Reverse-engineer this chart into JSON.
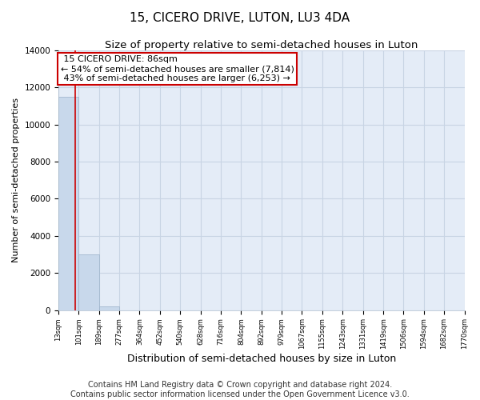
{
  "title": "15, CICERO DRIVE, LUTON, LU3 4DA",
  "subtitle": "Size of property relative to semi-detached houses in Luton",
  "xlabel": "Distribution of semi-detached houses by size in Luton",
  "ylabel": "Number of semi-detached properties",
  "bin_edges": [
    13,
    101,
    189,
    277,
    364,
    452,
    540,
    628,
    716,
    804,
    892,
    979,
    1067,
    1155,
    1243,
    1331,
    1419,
    1506,
    1594,
    1682,
    1770
  ],
  "bin_labels": [
    "13sqm",
    "101sqm",
    "189sqm",
    "277sqm",
    "364sqm",
    "452sqm",
    "540sqm",
    "628sqm",
    "716sqm",
    "804sqm",
    "892sqm",
    "979sqm",
    "1067sqm",
    "1155sqm",
    "1243sqm",
    "1331sqm",
    "1419sqm",
    "1506sqm",
    "1594sqm",
    "1682sqm",
    "1770sqm"
  ],
  "bar_heights": [
    11500,
    3000,
    200,
    0,
    0,
    0,
    0,
    0,
    0,
    0,
    0,
    0,
    0,
    0,
    0,
    0,
    0,
    0,
    0,
    0
  ],
  "bar_color": "#c8d8eb",
  "bar_edgecolor": "#9ab0c8",
  "property_size": 86,
  "property_label": "15 CICERO DRIVE: 86sqm",
  "pct_smaller": 54,
  "count_smaller": 7814,
  "pct_larger": 43,
  "count_larger": 6253,
  "vline_color": "#cc0000",
  "ylim": [
    0,
    14000
  ],
  "yticks": [
    0,
    2000,
    4000,
    6000,
    8000,
    10000,
    12000,
    14000
  ],
  "grid_color": "#c8d4e4",
  "bg_color": "#e4ecf7",
  "footer_line1": "Contains HM Land Registry data © Crown copyright and database right 2024.",
  "footer_line2": "Contains public sector information licensed under the Open Government Licence v3.0.",
  "title_fontsize": 11,
  "subtitle_fontsize": 9.5,
  "annotation_fontsize": 8,
  "xlabel_fontsize": 9,
  "ylabel_fontsize": 8,
  "footer_fontsize": 7
}
